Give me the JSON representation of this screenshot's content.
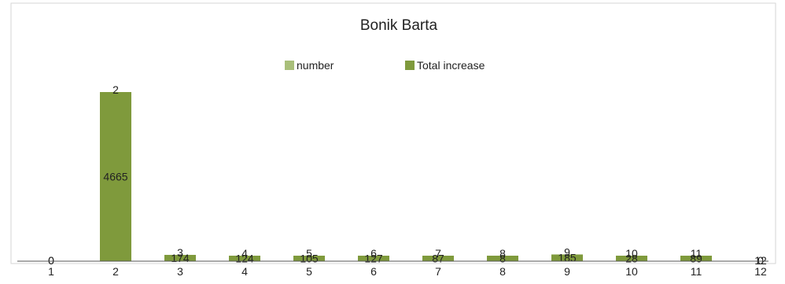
{
  "chart_data": {
    "type": "bar",
    "title": "Bonik Barta",
    "xlabel": "",
    "ylabel": "",
    "categories": [
      "1",
      "2",
      "3",
      "4",
      "5",
      "6",
      "7",
      "8",
      "9",
      "10",
      "11",
      "12"
    ],
    "series": [
      {
        "name": "number",
        "color": "#a9bf7a",
        "values": [
          0,
          2,
          3,
          4,
          5,
          6,
          7,
          8,
          9,
          10,
          11,
          12
        ]
      },
      {
        "name": "Total increase",
        "color": "#7f9a3c",
        "values": [
          0,
          4665,
          174,
          124,
          105,
          127,
          87,
          8,
          185,
          28,
          89,
          0
        ]
      }
    ],
    "ylim": [
      0,
      4665
    ],
    "grid": false,
    "legend_position": "top-center"
  }
}
